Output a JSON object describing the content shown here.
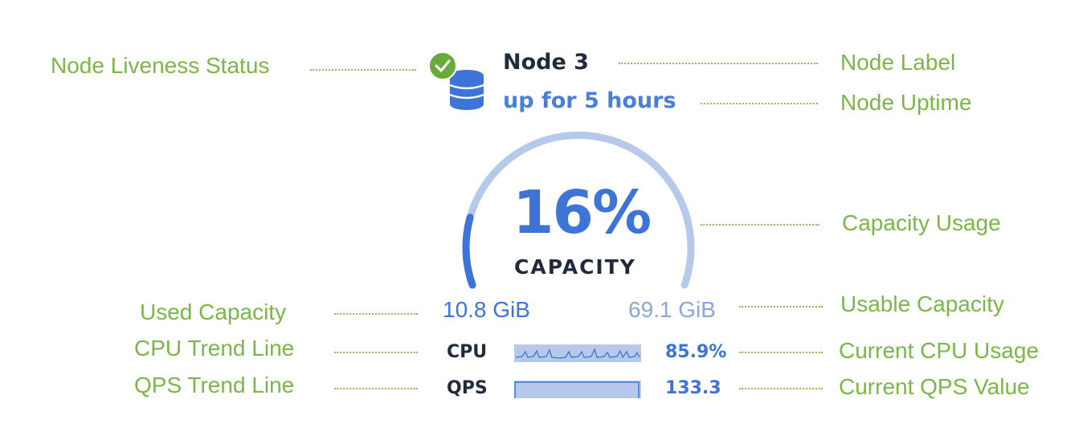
{
  "node": {
    "label": "Node 3",
    "uptime": "up for 5 hours",
    "liveness": "live",
    "capacity_percent_label": "16%",
    "capacity_fraction": 0.16,
    "capacity_title": "CAPACITY",
    "used_capacity": "10.8 GiB",
    "usable_capacity": "69.1 GiB",
    "cpu_label": "CPU",
    "cpu_value": "85.9%",
    "qps_label": "QPS",
    "qps_value": "133.3"
  },
  "annotations": {
    "liveness": "Node Liveness Status",
    "label": "Node Label",
    "uptime": "Node Uptime",
    "capacity_usage": "Capacity Usage",
    "used_capacity": "Used Capacity",
    "usable_capacity": "Usable Capacity",
    "cpu_trend": "CPU Trend Line",
    "cpu_current": "Current CPU Usage",
    "qps_trend": "QPS Trend Line",
    "qps_current": "Current QPS Value"
  },
  "colors": {
    "accent": "#3d74d6",
    "track": "#b6c9ea",
    "annotation": "#7ab648",
    "live": "#6aaa3a"
  }
}
